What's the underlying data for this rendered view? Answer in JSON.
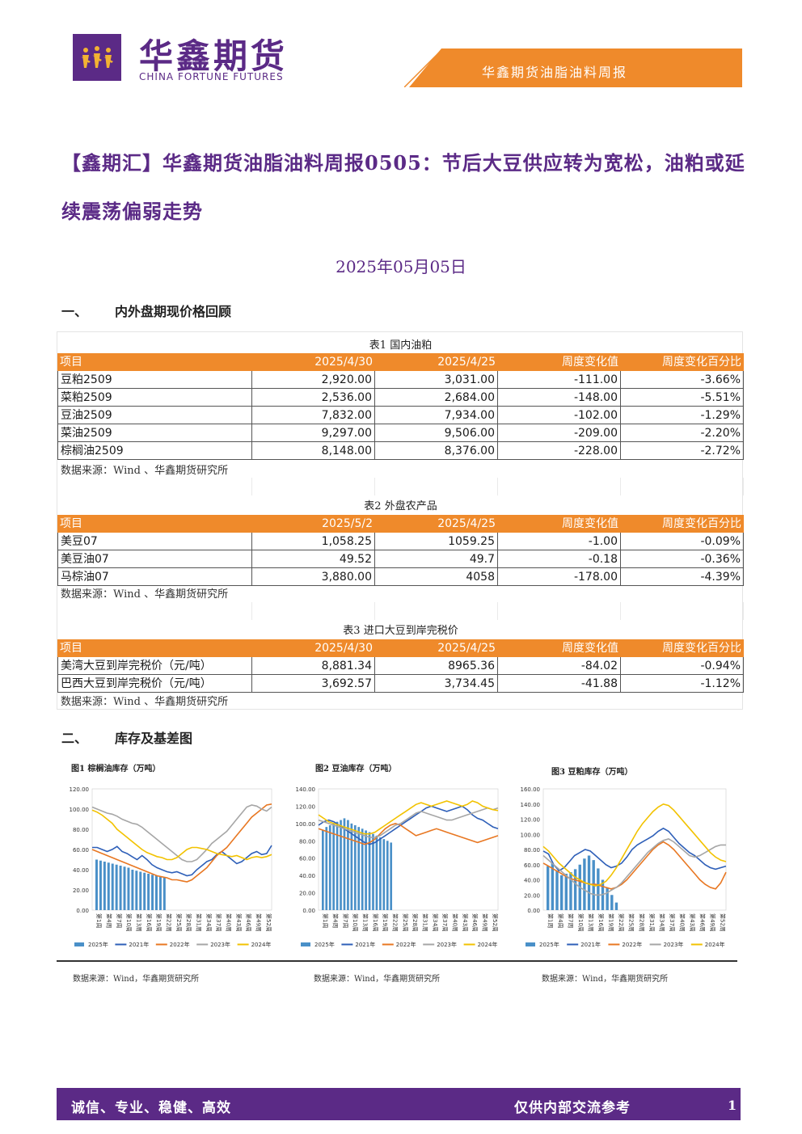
{
  "brand": {
    "cn": "华鑫期货",
    "en": "CHINA FORTUNE FUTURES",
    "report_name": "华鑫期货油脂油料周报"
  },
  "title": "【鑫期汇】华鑫期货油脂油料周报0505：节后大豆供应转为宽松，油粕或延续震荡偏弱走势",
  "date": "2025年05月05日",
  "section1": {
    "num": "一、",
    "label": "内外盘期现价格回顾"
  },
  "section2": {
    "num": "二、",
    "label": "库存及基差图"
  },
  "table1": {
    "caption": "表1 国内油粕",
    "headers": [
      "项目",
      "2025/4/30",
      "2025/4/25",
      "周度变化值",
      "周度变化百分比"
    ],
    "rows": [
      [
        "豆粕2509",
        "2,920.00",
        "3,031.00",
        "-111.00",
        "-3.66%"
      ],
      [
        "菜粕2509",
        "2,536.00",
        "2,684.00",
        "-148.00",
        "-5.51%"
      ],
      [
        "豆油2509",
        "7,832.00",
        "7,934.00",
        "-102.00",
        "-1.29%"
      ],
      [
        "菜油2509",
        "9,297.00",
        "9,506.00",
        "-209.00",
        "-2.20%"
      ],
      [
        "棕榈油2509",
        "8,148.00",
        "8,376.00",
        "-228.00",
        "-2.72%"
      ]
    ],
    "source": "数据来源：Wind 、华鑫期货研究所"
  },
  "table2": {
    "caption": "表2 外盘农产品",
    "headers": [
      "项目",
      "2025/5/2",
      "2025/4/25",
      "周度变化值",
      "周度变化百分比"
    ],
    "rows": [
      [
        "美豆07",
        "1,058.25",
        "1059.25",
        "-1.00",
        "-0.09%"
      ],
      [
        "美豆油07",
        "49.52",
        "49.7",
        "-0.18",
        "-0.36%"
      ],
      [
        "马棕油07",
        "3,880.00",
        "4058",
        "-178.00",
        "-4.39%"
      ]
    ],
    "source": "数据来源：Wind 、华鑫期货研究所"
  },
  "table3": {
    "caption": "表3 进口大豆到岸完税价",
    "headers": [
      "项目",
      "2025/4/30",
      "2025/4/25",
      "周度变化值",
      "周度变化百分比"
    ],
    "rows": [
      [
        "美湾大豆到岸完税价（元/吨）",
        "8,881.34",
        "8965.36",
        "-84.02",
        "-0.94%"
      ],
      [
        "巴西大豆到岸完税价（元/吨）",
        "3,692.57",
        "3,734.45",
        "-41.88",
        "-1.12%"
      ]
    ],
    "source": "数据来源：Wind 、华鑫期货研究所"
  },
  "colors": {
    "purple": "#5b2a86",
    "orange": "#ef8a2b",
    "bar2025": "#4a90c8",
    "l2021": "#2e5fb8",
    "l2022": "#e87722",
    "l2023": "#a6a6a6",
    "l2024": "#f2c200"
  },
  "chart_data": [
    {
      "type": "line",
      "title": "图1 棕榈油库存（万吨）",
      "ylim": [
        0,
        120
      ],
      "yticks": [
        "0.00",
        "20.00",
        "40.00",
        "60.00",
        "80.00",
        "100.00",
        "120.00"
      ],
      "xticks": [
        "第1周",
        "第4周",
        "第7周",
        "第10周",
        "第13周",
        "第16周",
        "第19周",
        "第22周",
        "第25周",
        "第28周",
        "第31周",
        "第34周",
        "第37周",
        "第40周",
        "第43周",
        "第46周",
        "第49周",
        "第52周"
      ],
      "series": [
        {
          "name": "2025年",
          "kind": "bar",
          "values": [
            50,
            49,
            48,
            47,
            46,
            45,
            44,
            43,
            42,
            40,
            39,
            38,
            37,
            36,
            35,
            34,
            33,
            32
          ]
        },
        {
          "name": "2021年",
          "values": [
            62,
            62,
            60,
            58,
            60,
            63,
            58,
            56,
            53,
            50,
            54,
            50,
            45,
            42,
            40,
            38,
            37,
            38,
            36,
            34,
            35,
            40,
            44,
            48,
            50,
            55,
            58,
            54,
            50,
            46,
            48,
            52,
            56,
            58,
            55,
            56,
            64
          ]
        },
        {
          "name": "2022年",
          "values": [
            60,
            58,
            56,
            54,
            52,
            50,
            48,
            46,
            44,
            42,
            40,
            38,
            36,
            34,
            33,
            32,
            30,
            30,
            29,
            28,
            30,
            34,
            38,
            42,
            48,
            54,
            58,
            62,
            68,
            74,
            80,
            86,
            92,
            96,
            100,
            104,
            105
          ]
        },
        {
          "name": "2023年",
          "values": [
            102,
            100,
            98,
            96,
            95,
            93,
            90,
            88,
            86,
            85,
            82,
            78,
            74,
            70,
            66,
            62,
            58,
            54,
            50,
            48,
            48,
            50,
            55,
            60,
            66,
            70,
            74,
            78,
            84,
            90,
            96,
            102,
            104,
            103,
            100,
            98,
            102
          ]
        },
        {
          "name": "2024年",
          "values": [
            99,
            97,
            94,
            90,
            86,
            80,
            76,
            72,
            68,
            64,
            60,
            57,
            55,
            53,
            52,
            50,
            50,
            52,
            56,
            60,
            62,
            62,
            61,
            60,
            58,
            56,
            55,
            54,
            53,
            54,
            52,
            50,
            52,
            53,
            52,
            53,
            55
          ]
        }
      ]
    },
    {
      "type": "line",
      "title": "图2 豆油库存（万吨）",
      "ylim": [
        0,
        140
      ],
      "yticks": [
        "0.00",
        "20.00",
        "40.00",
        "60.00",
        "80.00",
        "100.00",
        "120.00",
        "140.00"
      ],
      "xticks": [
        "第1周",
        "第4周",
        "第7周",
        "第10周",
        "第13周",
        "第16周",
        "第19周",
        "第22周",
        "第25周",
        "第28周",
        "第31周",
        "第34周",
        "第37周",
        "第40周",
        "第43周",
        "第46周",
        "第49周",
        "第52周"
      ],
      "series": [
        {
          "name": "2025年",
          "kind": "bar",
          "values": [
            92,
            96,
            98,
            100,
            102,
            104,
            106,
            104,
            100,
            98,
            96,
            94,
            92,
            90,
            88,
            86,
            84,
            82,
            80,
            78
          ]
        },
        {
          "name": "2021年",
          "values": [
            98,
            102,
            104,
            102,
            98,
            94,
            90,
            86,
            82,
            78,
            76,
            78,
            82,
            86,
            90,
            94,
            98,
            102,
            106,
            110,
            114,
            118,
            120,
            118,
            116,
            114,
            116,
            118,
            120,
            116,
            110,
            106,
            104,
            100,
            96,
            94
          ]
        },
        {
          "name": "2022年",
          "values": [
            94,
            92,
            90,
            88,
            86,
            84,
            82,
            80,
            78,
            76,
            78,
            82,
            88,
            94,
            98,
            100,
            98,
            94,
            90,
            86,
            88,
            90,
            92,
            94,
            92,
            90,
            88,
            86,
            84,
            82,
            80,
            78,
            80,
            82,
            84,
            86
          ]
        },
        {
          "name": "2023年",
          "values": [
            104,
            102,
            100,
            98,
            96,
            94,
            92,
            90,
            88,
            86,
            84,
            84,
            86,
            90,
            94,
            98,
            100,
            104,
            108,
            112,
            114,
            112,
            110,
            108,
            106,
            104,
            104,
            106,
            108,
            110,
            112,
            114,
            116,
            118,
            116,
            118
          ]
        },
        {
          "name": "2024年",
          "values": [
            110,
            106,
            102,
            100,
            98,
            96,
            94,
            92,
            90,
            88,
            88,
            90,
            94,
            98,
            102,
            106,
            110,
            114,
            118,
            122,
            124,
            122,
            120,
            122,
            124,
            126,
            124,
            122,
            120,
            122,
            126,
            124,
            120,
            118,
            116,
            115
          ]
        }
      ]
    },
    {
      "type": "line",
      "title": "图3 豆粕库存（万吨）",
      "ylim": [
        0,
        160
      ],
      "yticks": [
        "0.00",
        "20.00",
        "40.00",
        "60.00",
        "80.00",
        "100.00",
        "120.00",
        "140.00",
        "160.00"
      ],
      "xticks": [
        "第1周",
        "第4周",
        "第7周",
        "第10周",
        "第13周",
        "第16周",
        "第19周",
        "第22周",
        "第25周",
        "第28周",
        "第31周",
        "第34周",
        "第37周",
        "第40周",
        "第43周",
        "第46周",
        "第49周",
        "第52周"
      ],
      "series": [
        {
          "name": "2025年",
          "kind": "bar",
          "values": [
            58,
            62,
            52,
            46,
            48,
            50,
            54,
            60,
            68,
            72,
            66,
            55,
            40,
            30,
            20,
            10
          ]
        },
        {
          "name": "2021年",
          "values": [
            78,
            74,
            60,
            52,
            56,
            64,
            72,
            76,
            80,
            78,
            72,
            66,
            60,
            56,
            58,
            62,
            70,
            80,
            86,
            90,
            94,
            98,
            104,
            108,
            104,
            96,
            88,
            82,
            76,
            72,
            66,
            60,
            56,
            54,
            56,
            58
          ]
        },
        {
          "name": "2022年",
          "values": [
            62,
            58,
            54,
            50,
            46,
            42,
            40,
            38,
            36,
            34,
            34,
            32,
            30,
            28,
            30,
            34,
            40,
            48,
            56,
            64,
            72,
            80,
            86,
            90,
            86,
            80,
            72,
            64,
            56,
            48,
            40,
            34,
            30,
            28,
            36,
            50
          ]
        },
        {
          "name": "2023年",
          "values": [
            72,
            66,
            60,
            54,
            48,
            42,
            36,
            30,
            26,
            22,
            20,
            20,
            22,
            26,
            30,
            36,
            44,
            52,
            60,
            68,
            76,
            82,
            88,
            92,
            94,
            90,
            84,
            78,
            72,
            70,
            72,
            76,
            80,
            84,
            86,
            86
          ]
        },
        {
          "name": "2024年",
          "values": [
            84,
            78,
            70,
            62,
            56,
            50,
            44,
            40,
            36,
            34,
            32,
            34,
            38,
            46,
            56,
            68,
            80,
            92,
            104,
            114,
            122,
            130,
            136,
            140,
            138,
            132,
            124,
            116,
            108,
            100,
            92,
            84,
            76,
            70,
            66,
            64
          ]
        }
      ]
    }
  ],
  "chart_sources": [
    "数据来源：Wind，华鑫期货研究所",
    "数据来源：Wind，华鑫期货研究所",
    "数据来源：Wind，华鑫期货研究所"
  ],
  "footer": {
    "left": "诚信、专业、稳健、高效",
    "right": "仅供内部交流参考",
    "page": "1"
  }
}
